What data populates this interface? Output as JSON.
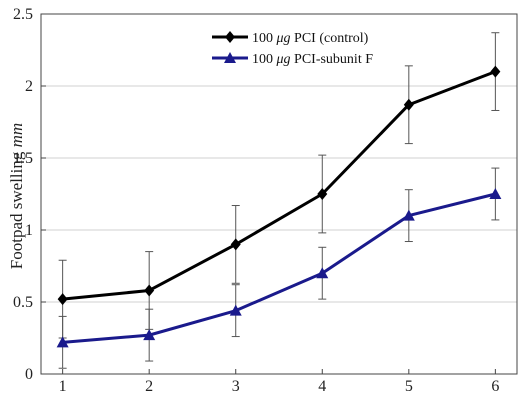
{
  "chart_data": {
    "type": "line",
    "x": [
      1,
      2,
      3,
      4,
      5,
      6
    ],
    "xlim": [
      0.75,
      6.25
    ],
    "ylim": [
      0,
      2.5
    ],
    "xticks": [
      "1",
      "2",
      "3",
      "4",
      "5",
      "6"
    ],
    "yticks": [
      "0",
      "0.5",
      "1",
      "1.5",
      "2",
      "2.5"
    ],
    "ylabel": "Footpad swelling",
    "ylabel_unit": "mm",
    "xlabel": "",
    "title": "",
    "grid": "horizontal",
    "legend_position": "top-center",
    "series": [
      {
        "name_prefix": "100 ",
        "name_unit": "μg",
        "name_suffix": " PCI (control)",
        "color": "#000000",
        "marker": "diamond",
        "values": [
          0.52,
          0.58,
          0.9,
          1.25,
          1.87,
          2.1
        ],
        "errors": [
          0.27,
          0.27,
          0.27,
          0.27,
          0.27,
          0.27
        ]
      },
      {
        "name_prefix": "100 ",
        "name_unit": "μg",
        "name_suffix": " PCI-subunit F",
        "color": "#1a1a8c",
        "marker": "triangle",
        "values": [
          0.22,
          0.27,
          0.44,
          0.7,
          1.1,
          1.25
        ],
        "errors": [
          0.18,
          0.18,
          0.18,
          0.18,
          0.18,
          0.18
        ]
      }
    ]
  }
}
